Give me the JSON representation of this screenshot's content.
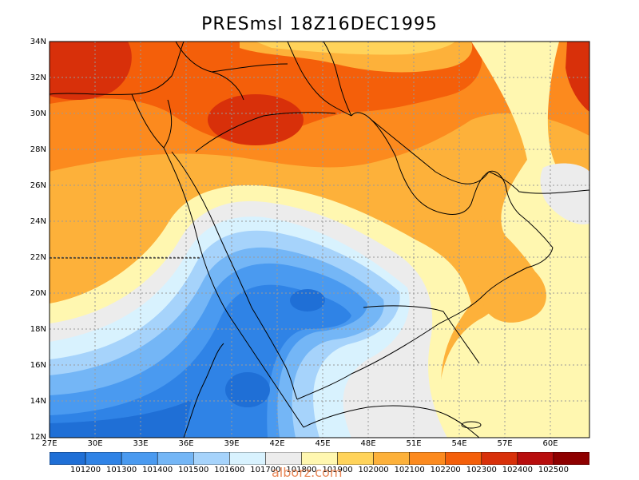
{
  "title": "PRESmsl  18Z16DEC1995",
  "watermark": "alborz.com",
  "lat_labels": [
    "34N",
    "32N",
    "30N",
    "28N",
    "26N",
    "24N",
    "22N",
    "20N",
    "18N",
    "16N",
    "14N",
    "12N"
  ],
  "lon_labels": [
    "27E",
    "30E",
    "33E",
    "36E",
    "39E",
    "42E",
    "45E",
    "48E",
    "51E",
    "54E",
    "57E",
    "60E"
  ],
  "colorbar": {
    "colors": [
      "#1f6fd6",
      "#2f83e6",
      "#4a9af0",
      "#74b6f6",
      "#a6d3fb",
      "#d8f2fe",
      "#ececec",
      "#fff7b0",
      "#ffd35a",
      "#fdb13a",
      "#fc8a1e",
      "#f45f0a",
      "#d8300a",
      "#b80e0e",
      "#8e0000"
    ],
    "labels": [
      "101200",
      "101300",
      "101400",
      "101500",
      "101600",
      "101700",
      "101800",
      "101900",
      "102000",
      "102100",
      "102200",
      "102300",
      "102400",
      "102500"
    ]
  }
}
